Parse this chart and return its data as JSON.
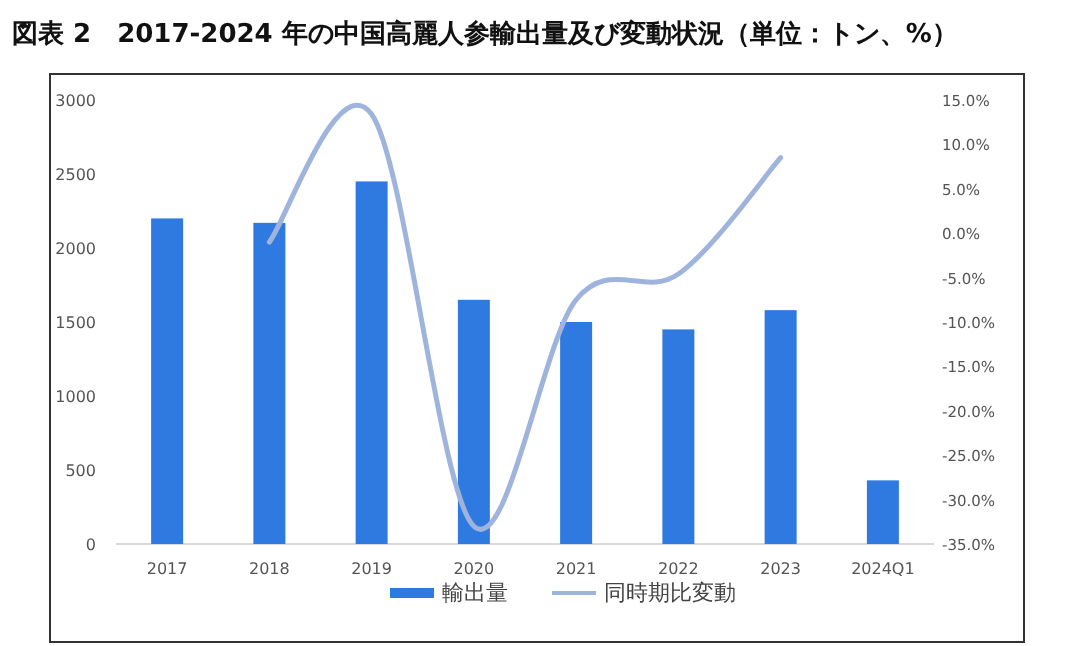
{
  "chart_data": {
    "type": "bar",
    "title": "図表 2　2017-2024 年の中国高麗人参輸出量及び変動状況（単位：トン、%）",
    "categories": [
      "2017",
      "2018",
      "2019",
      "2020",
      "2021",
      "2022",
      "2023",
      "2024Q1"
    ],
    "series": [
      {
        "name": "輸出量",
        "color": "#2f7ae0",
        "values": [
          2200,
          2170,
          2450,
          1650,
          1500,
          1450,
          1580,
          430
        ]
      },
      {
        "name": "同時期比変動",
        "type": "line",
        "axis": "y2",
        "color": "#9fb4dc",
        "values": [
          null,
          -1.0,
          13.4,
          -33.0,
          -7.5,
          -4.6,
          8.5,
          null
        ]
      }
    ],
    "ylim": [
      0,
      3000
    ],
    "yticks": [
      0,
      500,
      1000,
      1500,
      2000,
      2500,
      3000
    ],
    "y2lim": [
      -35,
      15
    ],
    "y2ticks": [
      {
        "value": -35,
        "label": "-35.0%"
      },
      {
        "value": -30,
        "label": "-30.0%"
      },
      {
        "value": -25,
        "label": "-25.0%"
      },
      {
        "value": -20,
        "label": "-20.0%"
      },
      {
        "value": -15,
        "label": "-15.0%"
      },
      {
        "value": -10,
        "label": "-10.0%"
      },
      {
        "value": -5,
        "label": "-5.0%"
      },
      {
        "value": 0,
        "label": "0.0%"
      },
      {
        "value": 5,
        "label": "5.0%"
      },
      {
        "value": 10,
        "label": "10.0%"
      },
      {
        "value": 15,
        "label": "15.0%"
      }
    ],
    "legend": "bottom",
    "grid": false
  }
}
